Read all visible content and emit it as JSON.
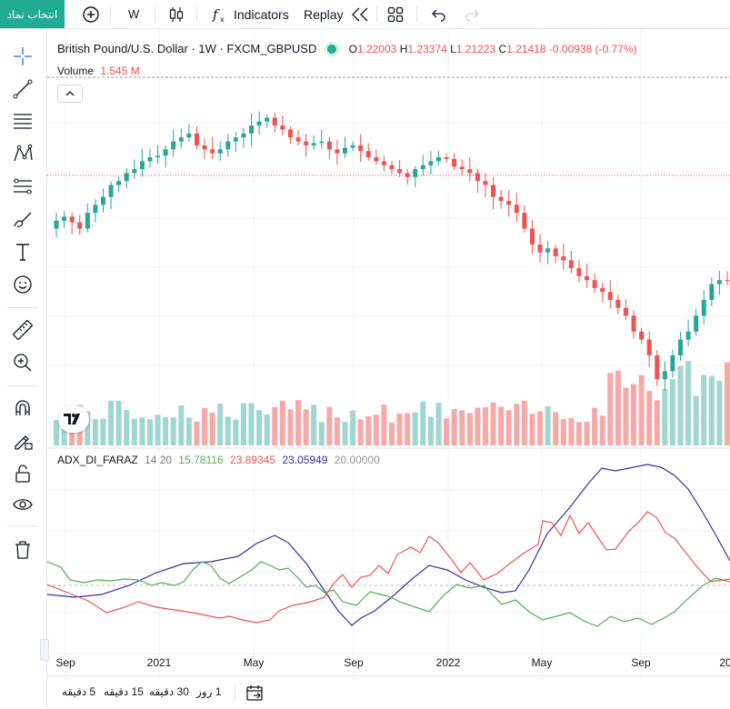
{
  "toolbar": {
    "symbol_search": "انتخاب نماد",
    "interval": "W",
    "indicators": "Indicators",
    "replay": "Replay"
  },
  "legend": {
    "title": "British Pound/U.S. Dollar · 1W · FXCM_GBPUSD",
    "o_label": "O",
    "o_value": "1.22003",
    "h_label": "H",
    "h_value": "1.23374",
    "l_label": "L",
    "l_value": "1.21223",
    "c_label": "C",
    "c_value": "1.21418",
    "change": "-0.00938 (-0.77%)"
  },
  "volume_legend": {
    "label": "Volume",
    "value": "1.545 M"
  },
  "indicator_legend": {
    "name": "ADX_DI_FARAZ",
    "params": "14 20",
    "v1": "15.78116",
    "v2": "23.89345",
    "v3": "23.05949",
    "v4": "20.00000"
  },
  "time_axis": [
    "Sep",
    "2021",
    "May",
    "Sep",
    "2022",
    "May",
    "Sep",
    "20"
  ],
  "timeframes": [
    "5 دقیقه",
    "15 دقیقه",
    "30 دقیقه",
    "1 روز"
  ],
  "colors": {
    "up": "#26a69a",
    "down": "#ef5350",
    "adx": "#3a2fa0",
    "di_plus": "#4caf50",
    "di_minus": "#ef5350"
  },
  "chart_data": {
    "type": "candlestick",
    "symbol": "FXCM_GBPUSD",
    "interval": "1W",
    "visible_range": [
      "Sep 2020",
      "Dec 2022"
    ],
    "last_ohlc": {
      "open": 1.22003,
      "high": 1.23374,
      "low": 1.21223,
      "close": 1.21418
    },
    "volume_last": "1.545 M",
    "indicator": {
      "name": "ADX_DI_FARAZ",
      "params": [
        14,
        20
      ],
      "values": [
        15.78116,
        23.89345,
        23.05949,
        20.0
      ]
    },
    "price_trajectory": [
      1.29,
      1.295,
      1.288,
      1.28,
      1.3,
      1.31,
      1.32,
      1.335,
      1.34,
      1.35,
      1.355,
      1.365,
      1.37,
      1.372,
      1.38,
      1.39,
      1.395,
      1.4,
      1.385,
      1.38,
      1.375,
      1.38,
      1.39,
      1.395,
      1.4,
      1.41,
      1.415,
      1.42,
      1.41,
      1.405,
      1.395,
      1.39,
      1.385,
      1.388,
      1.39,
      1.38,
      1.375,
      1.382,
      1.385,
      1.378,
      1.37,
      1.365,
      1.36,
      1.355,
      1.35,
      1.345,
      1.355,
      1.36,
      1.365,
      1.37,
      1.368,
      1.358,
      1.355,
      1.35,
      1.34,
      1.335,
      1.32,
      1.315,
      1.31,
      1.3,
      1.28,
      1.26,
      1.25,
      1.255,
      1.245,
      1.24,
      1.23,
      1.22,
      1.215,
      1.205,
      1.2,
      1.19,
      1.18,
      1.17,
      1.15,
      1.14,
      1.12,
      1.09,
      1.1,
      1.12,
      1.14,
      1.15,
      1.17,
      1.19,
      1.21,
      1.215,
      1.214
    ]
  }
}
